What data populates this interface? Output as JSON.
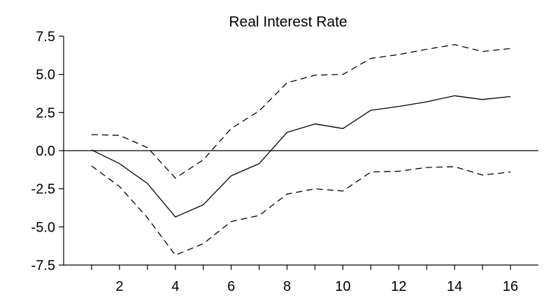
{
  "chart_data": {
    "type": "line",
    "title": "Real Interest Rate",
    "xlabel": "",
    "ylabel": "",
    "x": [
      1,
      2,
      3,
      4,
      5,
      6,
      7,
      8,
      9,
      10,
      11,
      12,
      13,
      14,
      15,
      16
    ],
    "x_tick_labels": [
      "2",
      "4",
      "6",
      "8",
      "10",
      "12",
      "14",
      "16"
    ],
    "x_tick_values": [
      2,
      4,
      6,
      8,
      10,
      12,
      14,
      16
    ],
    "xlim": [
      0,
      17
    ],
    "y_tick_labels": [
      "7.5",
      "5.0",
      "2.5",
      "0.0",
      "-2.5",
      "-5.0",
      "-7.5"
    ],
    "y_tick_values": [
      7.5,
      5.0,
      2.5,
      0.0,
      -2.5,
      -5.0,
      -7.5
    ],
    "ylim": [
      -7.5,
      7.5
    ],
    "zero_line": true,
    "grid": false,
    "series": [
      {
        "style": "solid",
        "color": "#000000",
        "values": [
          0.05,
          -0.85,
          -2.15,
          -4.35,
          -3.55,
          -1.65,
          -0.85,
          1.2,
          1.75,
          1.45,
          2.65,
          2.9,
          3.2,
          3.6,
          3.35,
          3.55
        ]
      },
      {
        "style": "dashed",
        "color": "#000000",
        "values": [
          1.05,
          1.0,
          0.2,
          -1.8,
          -0.6,
          1.45,
          2.6,
          4.45,
          4.95,
          5.0,
          6.05,
          6.3,
          6.65,
          6.95,
          6.5,
          6.7
        ]
      },
      {
        "style": "dashed",
        "color": "#000000",
        "values": [
          -1.0,
          -2.35,
          -4.4,
          -6.85,
          -6.1,
          -4.65,
          -4.25,
          -2.85,
          -2.5,
          -2.65,
          -1.4,
          -1.35,
          -1.1,
          -1.05,
          -1.6,
          -1.4
        ]
      }
    ]
  }
}
